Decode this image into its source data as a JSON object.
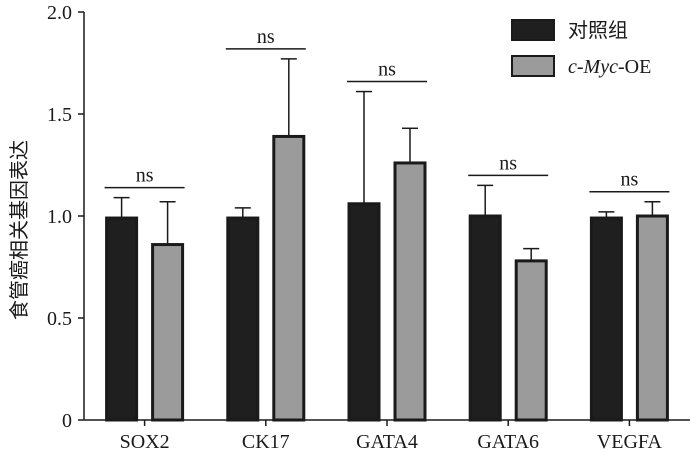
{
  "chart_data": {
    "type": "bar",
    "title": "",
    "xlabel": "",
    "ylabel": "食管癌相关基因表达",
    "ylim": [
      0,
      2.0
    ],
    "yticks": [
      "0",
      "0.5",
      "1.0",
      "1.5",
      "2.0"
    ],
    "categories": [
      "SOX2",
      "CK17",
      "GATA4",
      "GATA6",
      "VEGFA"
    ],
    "series": [
      {
        "name": "对照组",
        "color": "#1f1f1f",
        "values": [
          0.99,
          0.99,
          1.06,
          1.0,
          0.99
        ],
        "errors": [
          0.1,
          0.05,
          0.55,
          0.15,
          0.03
        ]
      },
      {
        "name": "c-Myc-OE",
        "color": "#9b9b9b",
        "values": [
          0.86,
          1.39,
          1.26,
          0.78,
          1.0
        ],
        "errors": [
          0.21,
          0.38,
          0.17,
          0.06,
          0.07
        ]
      }
    ],
    "annotations": [
      "ns",
      "ns",
      "ns",
      "ns",
      "ns"
    ],
    "legend_position": "top-right",
    "legend": {
      "control_label": "对照组",
      "oe_prefix": "c-",
      "oe_gene": "Myc",
      "oe_suffix": "-OE"
    }
  }
}
